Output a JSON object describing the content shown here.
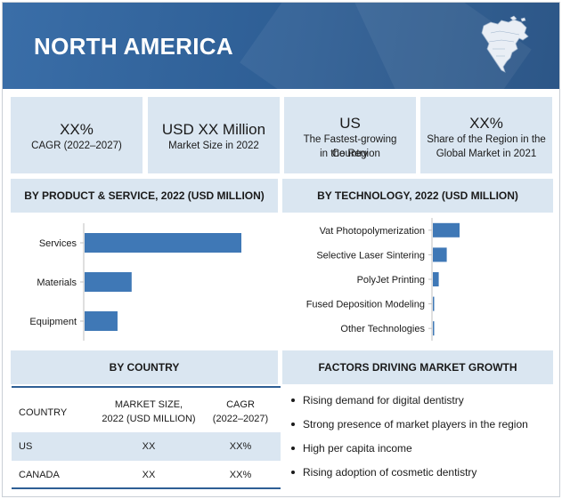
{
  "header": {
    "title": "NORTH AMERICA",
    "map_icon": "north-america-map-icon"
  },
  "kpis": [
    {
      "big": "XX%",
      "small": "CAGR (2022–2027)"
    },
    {
      "big": "USD XX Million",
      "small": "Market Size in 2022"
    },
    {
      "big": "US",
      "small_line1": "The Fastest-growing Country",
      "small_line2": "in the Region"
    },
    {
      "big": "XX%",
      "small_line1": "Share of the Region in the",
      "small_line2": "Global Market in 2021"
    }
  ],
  "sections": {
    "product": "BY PRODUCT & SERVICE, 2022 (USD MILLION)",
    "technology": "BY TECHNOLOGY, 2022 (USD MILLION)",
    "country": "BY COUNTRY",
    "factors": "FACTORS DRIVING MARKET GROWTH"
  },
  "chart_data": [
    {
      "type": "bar",
      "orientation": "horizontal",
      "title": "BY PRODUCT & SERVICE, 2022 (USD MILLION)",
      "categories": [
        "Services",
        "Materials",
        "Equipment"
      ],
      "values": [
        100,
        30,
        21
      ],
      "color": "#3f78b6"
    },
    {
      "type": "bar",
      "orientation": "horizontal",
      "title": "BY TECHNOLOGY, 2022 (USD MILLION)",
      "categories": [
        "Vat Photopolymerization",
        "Selective Laser Sintering",
        "PolyJet Printing",
        "Fused Deposition Modeling",
        "Other Technologies"
      ],
      "values": [
        100,
        52,
        22,
        4,
        3
      ],
      "color": "#3f78b6"
    }
  ],
  "table": {
    "headers": [
      "COUNTRY",
      "MARKET SIZE,",
      "2022 (USD MILLION)",
      "CAGR",
      "(2022–2027)"
    ],
    "rows": [
      {
        "country": "US",
        "size": "XX",
        "cagr": "XX%"
      },
      {
        "country": "CANADA",
        "size": "XX",
        "cagr": "XX%"
      }
    ]
  },
  "factors": [
    "Rising demand for digital dentistry",
    "Strong presence of market players in the region",
    "High per capita income",
    "Rising adoption of cosmetic dentistry"
  ]
}
